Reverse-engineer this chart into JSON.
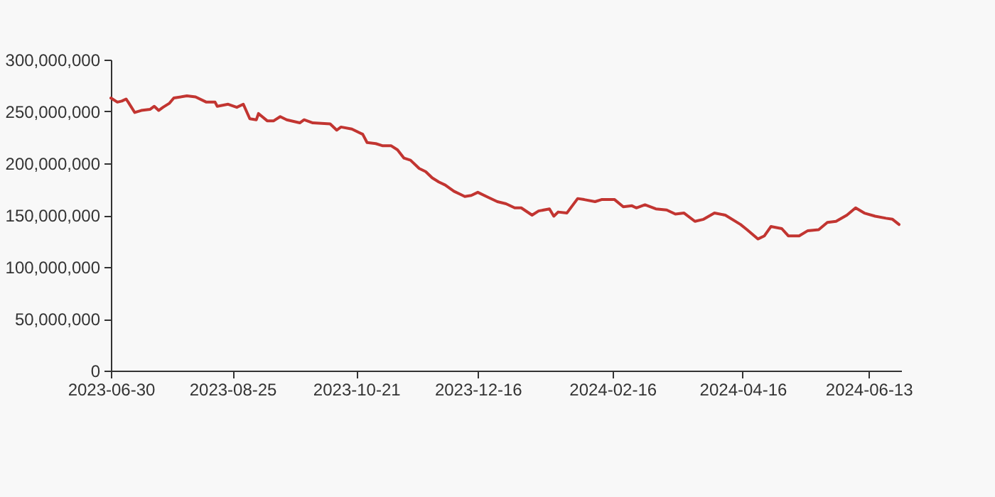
{
  "chart_data": {
    "type": "line",
    "x": [
      "2023-06-30",
      "2023-07-03",
      "2023-07-05",
      "2023-07-07",
      "2023-07-08",
      "2023-07-11",
      "2023-07-14",
      "2023-07-18",
      "2023-07-20",
      "2023-07-22",
      "2023-07-24",
      "2023-07-27",
      "2023-07-29",
      "2023-08-04",
      "2023-08-08",
      "2023-08-13",
      "2023-08-17",
      "2023-08-18",
      "2023-08-23",
      "2023-08-27",
      "2023-08-30",
      "2023-09-02",
      "2023-09-05",
      "2023-09-06",
      "2023-09-10",
      "2023-09-13",
      "2023-09-16",
      "2023-09-19",
      "2023-09-25",
      "2023-09-27",
      "2023-10-01",
      "2023-10-09",
      "2023-10-12",
      "2023-10-14",
      "2023-10-19",
      "2023-10-24",
      "2023-10-26",
      "2023-10-30",
      "2023-11-02",
      "2023-11-06",
      "2023-11-09",
      "2023-11-12",
      "2023-11-15",
      "2023-11-19",
      "2023-11-22",
      "2023-11-25",
      "2023-11-28",
      "2023-12-01",
      "2023-12-05",
      "2023-12-08",
      "2023-12-10",
      "2023-12-13",
      "2023-12-16",
      "2023-12-21",
      "2023-12-25",
      "2023-12-29",
      "2024-01-02",
      "2024-01-05",
      "2024-01-10",
      "2024-01-13",
      "2024-01-18",
      "2024-01-20",
      "2024-01-22",
      "2024-01-26",
      "2024-01-31",
      "2024-02-03",
      "2024-02-08",
      "2024-02-11",
      "2024-02-17",
      "2024-02-21",
      "2024-02-25",
      "2024-02-27",
      "2024-03-02",
      "2024-03-07",
      "2024-03-12",
      "2024-03-16",
      "2024-03-20",
      "2024-03-25",
      "2024-03-29",
      "2024-04-03",
      "2024-04-08",
      "2024-04-15",
      "2024-04-18",
      "2024-04-23",
      "2024-04-26",
      "2024-04-29",
      "2024-05-04",
      "2024-05-07",
      "2024-05-12",
      "2024-05-16",
      "2024-05-21",
      "2024-05-25",
      "2024-05-29",
      "2024-06-03",
      "2024-06-07",
      "2024-06-11",
      "2024-06-16",
      "2024-06-21",
      "2024-06-24",
      "2024-06-27"
    ],
    "series": [
      {
        "color": "#c23531",
        "values": [
          263000000,
          259000000,
          260000000,
          262000000,
          259000000,
          249000000,
          251000000,
          252000000,
          255000000,
          251000000,
          254000000,
          258000000,
          263000000,
          265000000,
          264000000,
          259000000,
          259000000,
          255000000,
          257000000,
          254000000,
          257000000,
          243000000,
          242000000,
          248000000,
          241000000,
          241000000,
          245000000,
          242000000,
          239000000,
          242000000,
          239000000,
          238000000,
          232000000,
          235000000,
          233000000,
          228000000,
          220000000,
          219000000,
          217000000,
          217000000,
          213000000,
          205000000,
          203000000,
          195000000,
          192000000,
          186000000,
          182000000,
          179000000,
          173000000,
          170000000,
          168000000,
          169000000,
          172000000,
          167000000,
          163000000,
          161000000,
          157000000,
          157000000,
          150000000,
          154000000,
          156000000,
          149000000,
          153000000,
          152000000,
          166000000,
          165000000,
          163000000,
          165000000,
          165000000,
          158000000,
          159000000,
          157000000,
          160000000,
          156000000,
          155000000,
          151000000,
          152000000,
          144000000,
          146000000,
          152000000,
          150000000,
          141000000,
          136000000,
          127000000,
          130000000,
          139000000,
          137000000,
          130000000,
          130000000,
          135000000,
          136000000,
          143000000,
          144000000,
          150000000,
          157000000,
          152000000,
          149000000,
          147000000,
          146000000,
          141000000
        ]
      }
    ],
    "xlim": [
      "2023-06-30",
      "2024-06-28"
    ],
    "xticks": [
      "2023-06-30",
      "2023-08-25",
      "2023-10-21",
      "2023-12-16",
      "2024-02-16",
      "2024-04-16",
      "2024-06-13"
    ],
    "ylim": [
      0,
      300000000
    ],
    "yticks": [
      0,
      {
        "value": 50000000,
        "label": "50,000,000"
      },
      {
        "value": 100000000,
        "label": "100,000,000"
      },
      {
        "value": 150000000,
        "label": "150,000,000"
      },
      {
        "value": 200000000,
        "label": "200,000,000"
      },
      {
        "value": 250000000,
        "label": "250,000,000"
      },
      {
        "value": 300000000,
        "label": "300,000,000"
      }
    ],
    "grid": false,
    "line_style": "solid"
  }
}
